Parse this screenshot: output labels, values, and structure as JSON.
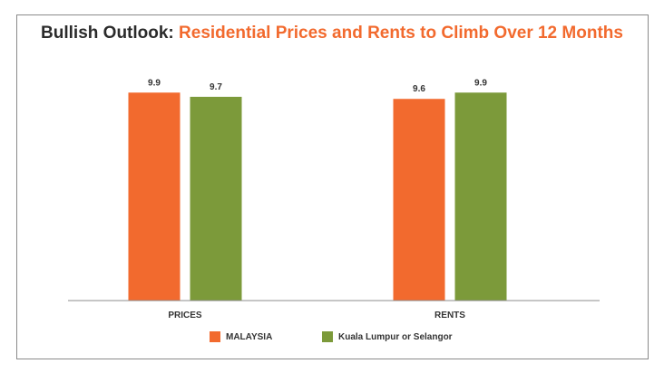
{
  "chart_data": {
    "type": "bar",
    "title_lead": "Bullish Outlook:",
    "title_rest": "Residential Prices and Rents to Climb Over 12 Months",
    "categories": [
      "PRICES",
      "RENTS"
    ],
    "series": [
      {
        "name": "MALAYSIA",
        "color": "#f26a2e",
        "values": [
          9.9,
          9.6
        ]
      },
      {
        "name": "Kuala Lumpur or Selangor",
        "color": "#7c9a3a",
        "values": [
          9.7,
          9.9
        ]
      }
    ],
    "ylim": [
      0,
      10.3
    ],
    "grid": false,
    "legend": "bottom"
  }
}
